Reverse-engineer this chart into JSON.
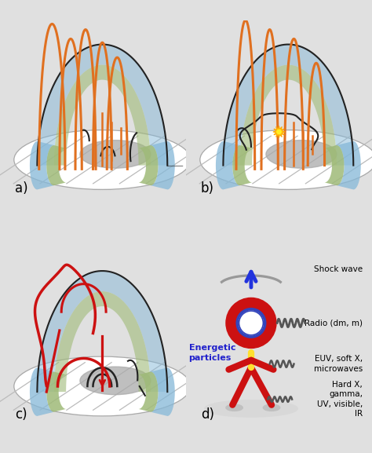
{
  "bg_color": "#e0e0e0",
  "white": "#ffffff",
  "label_a": "a)",
  "label_b": "b)",
  "label_c": "c)",
  "label_d": "d)",
  "shock_wave_text": "Shock wave",
  "radio_text": "Radio (dm, m)",
  "euv_text": "EUV, soft X,\nmicrowaves",
  "hard_text": "Hard X,\ngamma,\nUV, visible,\nIR",
  "energetic_text": "Energetic\nparticles",
  "blue_arrow_color": "#2233dd",
  "red_color": "#cc1111",
  "yellow_color": "#ffe030",
  "gray_color": "#999999",
  "dark_gray": "#555555",
  "orange_color": "#e07020",
  "black_color": "#222222",
  "blue_shell": "#85b8d8",
  "green_shell": "#9fba78",
  "light_green": "#c5d4a0",
  "gray_foot": "#aaaaaa"
}
